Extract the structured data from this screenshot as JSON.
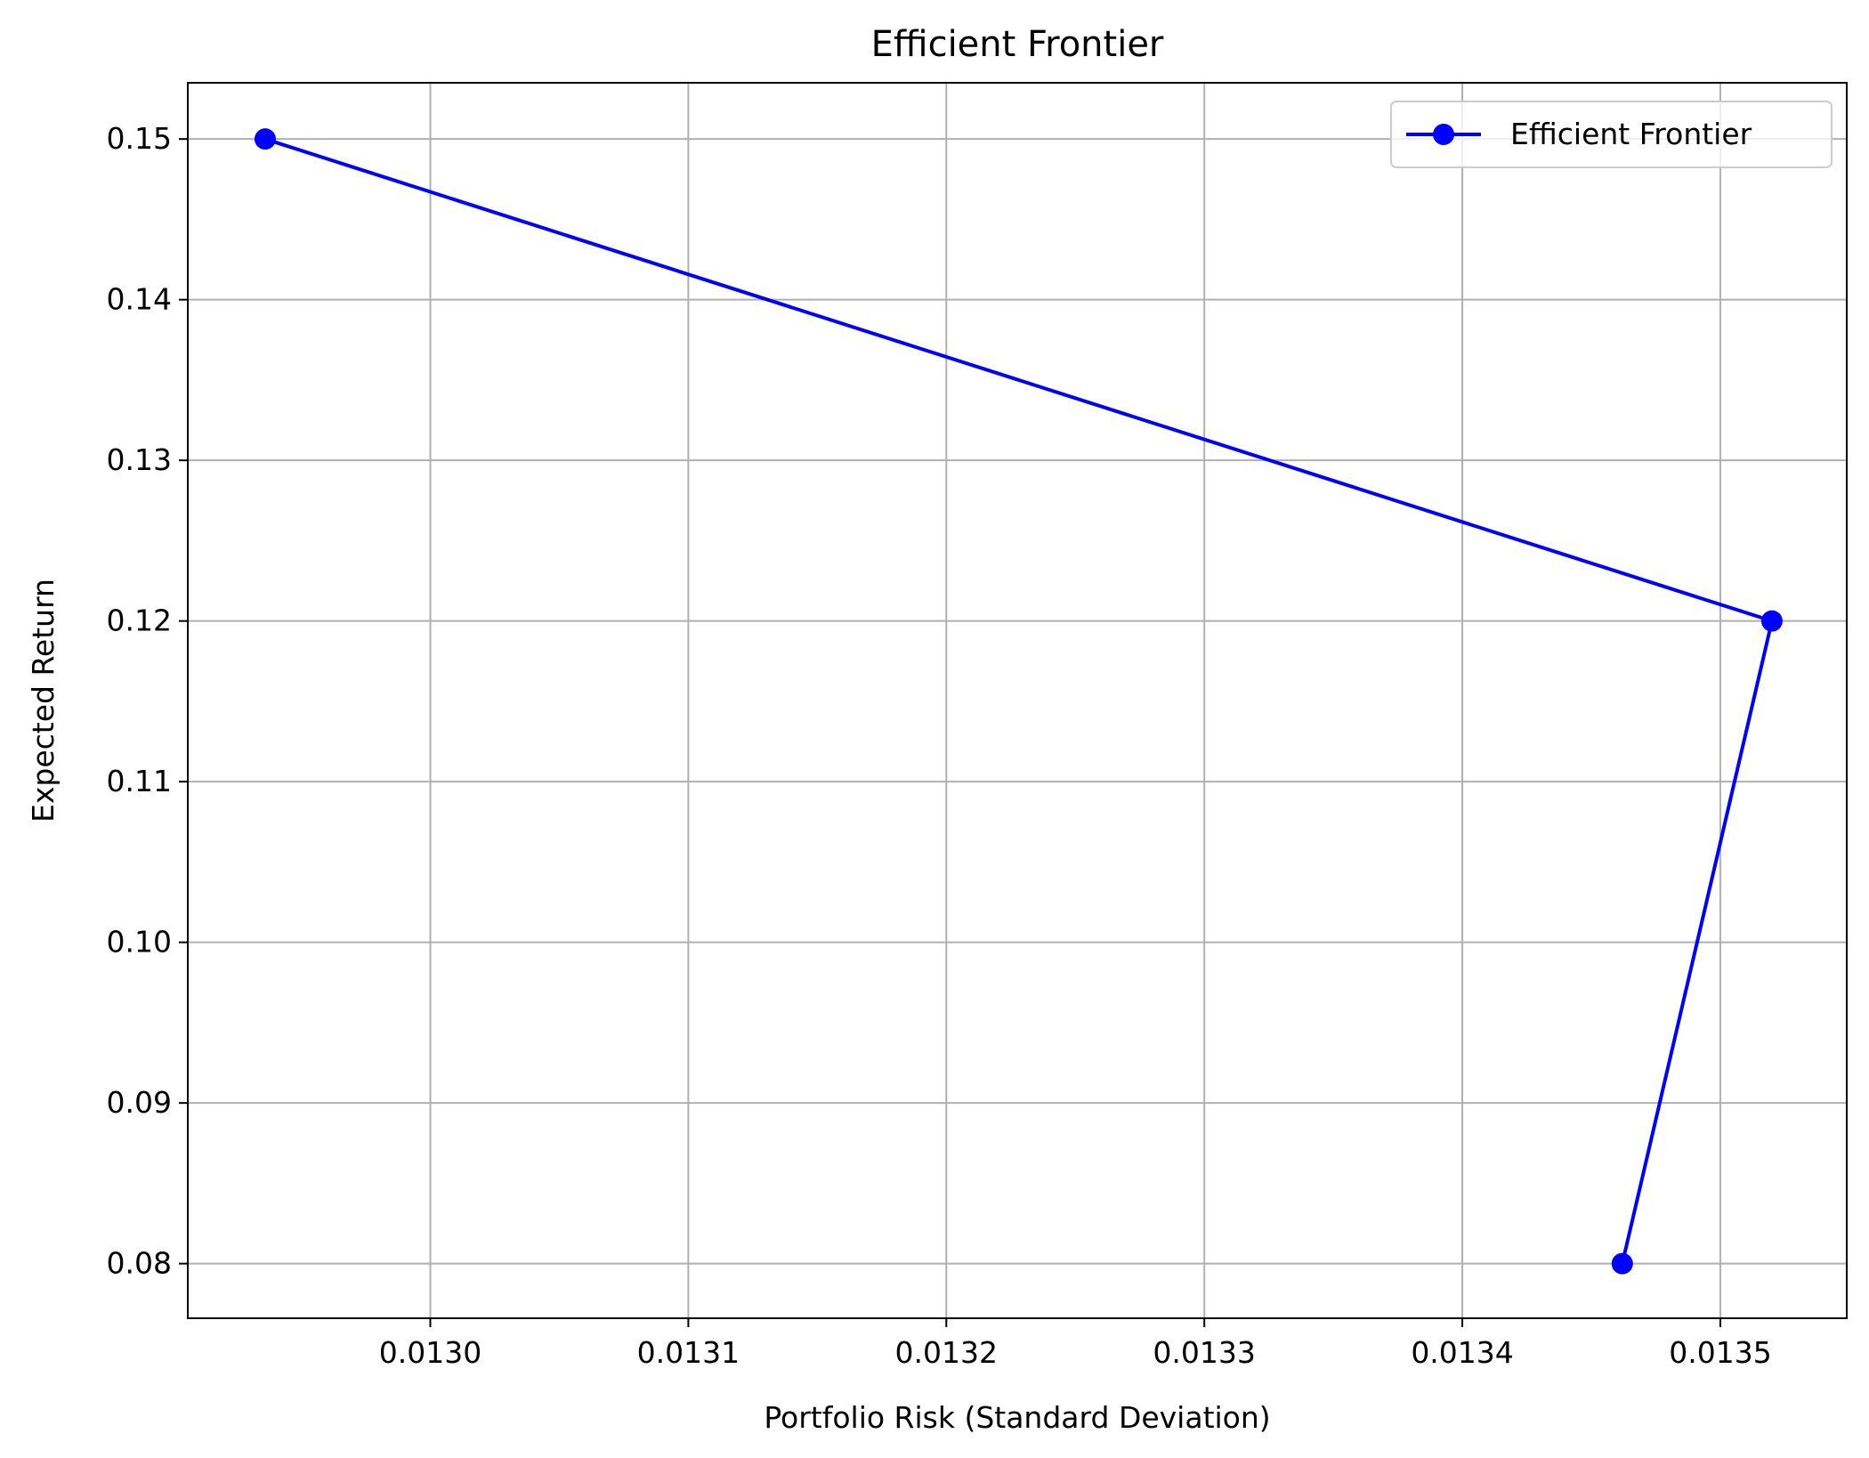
{
  "chart_data": {
    "type": "line",
    "title": "Efficient Frontier",
    "xlabel": "Portfolio Risk (Standard Deviation)",
    "ylabel": "Expected Return",
    "xlim": [
      0.012906,
      0.013549
    ],
    "ylim": [
      0.0766,
      0.1535
    ],
    "xticks": [
      0.013,
      0.0131,
      0.0132,
      0.0133,
      0.0134,
      0.0135
    ],
    "xtick_labels": [
      "0.0130",
      "0.0131",
      "0.0132",
      "0.0133",
      "0.0134",
      "0.0135"
    ],
    "yticks": [
      0.08,
      0.09,
      0.1,
      0.11,
      0.12,
      0.13,
      0.14,
      0.15
    ],
    "ytick_labels": [
      "0.08",
      "0.09",
      "0.10",
      "0.11",
      "0.12",
      "0.13",
      "0.14",
      "0.15"
    ],
    "grid": true,
    "legend_position": "upper right",
    "series": [
      {
        "name": "Efficient Frontier",
        "color": "#0000ff",
        "marker": "circle",
        "x": [
          0.013462,
          0.01352,
          0.012936
        ],
        "y": [
          0.08,
          0.12,
          0.15
        ]
      }
    ]
  }
}
